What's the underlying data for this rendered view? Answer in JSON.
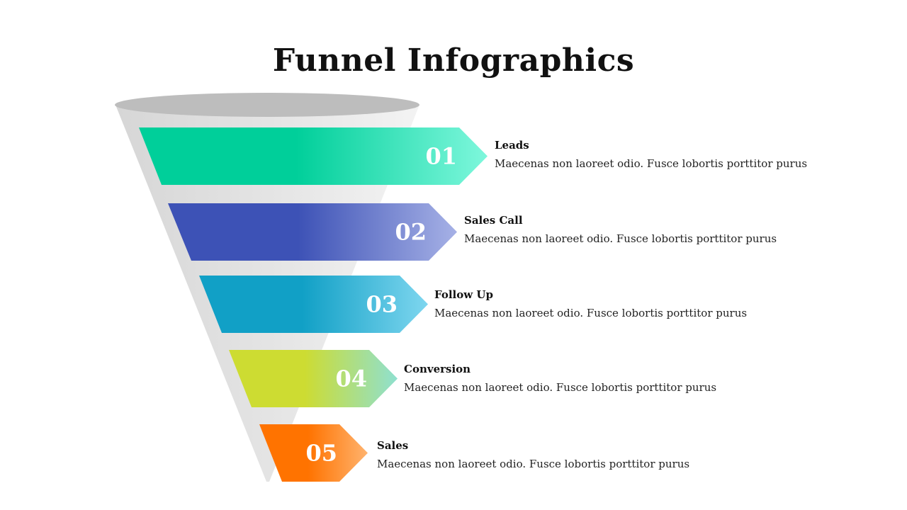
{
  "title": "Funnel Infographics",
  "colors": {
    "funnel_body": "#dcdcdc",
    "funnel_rim": "#bdbdbd"
  },
  "stages": [
    {
      "number": "01",
      "title": "Leads",
      "description": "Maecenas non laoreet odio. Fusce lobortis porttitor purus",
      "color_start": "#00cf9a",
      "color_end": "#7ef7dc"
    },
    {
      "number": "02",
      "title": "Sales Call",
      "description": "Maecenas non laoreet odio. Fusce lobortis porttitor purus",
      "color_start": "#3d52b6",
      "color_end": "#a6b1e6"
    },
    {
      "number": "03",
      "title": "Follow Up",
      "description": "Maecenas non laoreet odio. Fusce lobortis porttitor purus",
      "color_start": "#11a0c6",
      "color_end": "#7ed6ef"
    },
    {
      "number": "04",
      "title": "Conversion",
      "description": "Maecenas non laoreet odio. Fusce lobortis porttitor purus",
      "color_start": "#cddc32",
      "color_end": "#8fe0d0"
    },
    {
      "number": "05",
      "title": "Sales",
      "description": "Maecenas non laoreet odio. Fusce lobortis porttitor purus",
      "color_start": "#ff7300",
      "color_end": "#ffb36e"
    }
  ]
}
